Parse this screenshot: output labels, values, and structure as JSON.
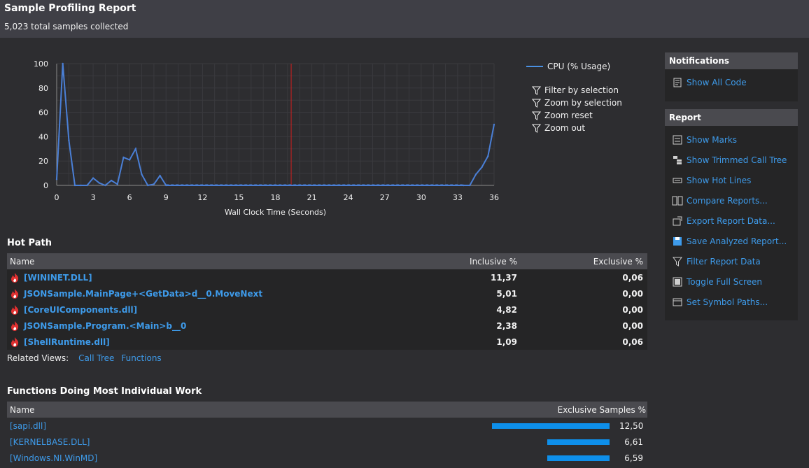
{
  "header": {
    "title": "Sample Profiling Report",
    "subtitle": "5,023 total samples collected"
  },
  "chart_data": {
    "type": "line",
    "title": "",
    "xlabel": "Wall Clock Time (Seconds)",
    "ylabel": "",
    "xlim": [
      0,
      36
    ],
    "ylim": [
      0,
      100
    ],
    "x_ticks": [
      "0",
      "3",
      "6",
      "9",
      "12",
      "15",
      "18",
      "21",
      "24",
      "27",
      "30",
      "33",
      "36"
    ],
    "y_ticks": [
      "0",
      "20",
      "40",
      "60",
      "80",
      "100"
    ],
    "grid": true,
    "legend_position": "right",
    "series": [
      {
        "name": "CPU (% Usage)",
        "color": "#4a7fd6",
        "x": [
          0,
          0.5,
          1.0,
          1.5,
          2.0,
          2.5,
          3.0,
          3.5,
          4.0,
          4.5,
          5.0,
          5.5,
          6.0,
          6.5,
          7.0,
          7.5,
          8.0,
          8.5,
          9.0,
          33.5,
          34.0,
          34.5,
          35.0,
          35.5,
          36.0
        ],
        "y": [
          5,
          100,
          37,
          0,
          0,
          0,
          6,
          2,
          0,
          4,
          1,
          23,
          21,
          30,
          9,
          0,
          1,
          8,
          0,
          0,
          0,
          9,
          15,
          24,
          50
        ]
      }
    ],
    "marker_x": 19.3
  },
  "legend": {
    "series_label": "CPU (% Usage)"
  },
  "chart_actions": [
    {
      "label": "Filter by selection",
      "icon": "filter-icon"
    },
    {
      "label": "Zoom by selection",
      "icon": "filter-icon"
    },
    {
      "label": "Zoom reset",
      "icon": "filter-icon"
    },
    {
      "label": "Zoom out",
      "icon": "filter-icon"
    }
  ],
  "hot_path": {
    "title": "Hot Path",
    "columns": {
      "name": "Name",
      "inclusive": "Inclusive %",
      "exclusive": "Exclusive %"
    },
    "rows": [
      {
        "name": "[WININET.DLL]",
        "inclusive": "11,37",
        "exclusive": "0,06"
      },
      {
        "name": "JSONSample.MainPage+<GetData>d__0.MoveNext",
        "inclusive": "5,01",
        "exclusive": "0,00"
      },
      {
        "name": "[CoreUIComponents.dll]",
        "inclusive": "4,82",
        "exclusive": "0,00"
      },
      {
        "name": "JSONSample.Program.<Main>b__0",
        "inclusive": "2,38",
        "exclusive": "0,00"
      },
      {
        "name": "[ShellRuntime.dll]",
        "inclusive": "1,09",
        "exclusive": "0,06"
      }
    ]
  },
  "related": {
    "label": "Related Views:",
    "links": [
      "Call Tree",
      "Functions"
    ]
  },
  "functions": {
    "title": "Functions Doing Most Individual Work",
    "columns": {
      "name": "Name",
      "samples": "Exclusive Samples %"
    },
    "rows": [
      {
        "name": "[sapi.dll]",
        "value": "12,50",
        "pct": 12.5
      },
      {
        "name": "[KERNELBASE.DLL]",
        "value": "6,61",
        "pct": 6.61
      },
      {
        "name": "[Windows.NI.WinMD]",
        "value": "6,59",
        "pct": 6.59
      }
    ]
  },
  "notifications": {
    "title": "Notifications",
    "items": [
      {
        "label": "Show All Code",
        "icon": "code-icon"
      }
    ]
  },
  "report": {
    "title": "Report",
    "items": [
      {
        "label": "Show Marks",
        "icon": "marks-icon"
      },
      {
        "label": "Show Trimmed Call Tree",
        "icon": "call-tree-icon"
      },
      {
        "label": "Show Hot Lines",
        "icon": "hot-lines-icon"
      },
      {
        "label": "Compare Reports...",
        "icon": "compare-icon"
      },
      {
        "label": "Export Report Data...",
        "icon": "export-icon"
      },
      {
        "label": "Save Analyzed Report...",
        "icon": "save-icon"
      },
      {
        "label": "Filter Report Data",
        "icon": "filter-icon"
      },
      {
        "label": "Toggle Full Screen",
        "icon": "fullscreen-icon"
      },
      {
        "label": "Set Symbol Paths...",
        "icon": "symbol-paths-icon"
      }
    ]
  },
  "colors": {
    "accent": "#3e9bea",
    "bar": "#0e8fea",
    "marker": "#cc2020",
    "line": "#4a7fd6"
  }
}
